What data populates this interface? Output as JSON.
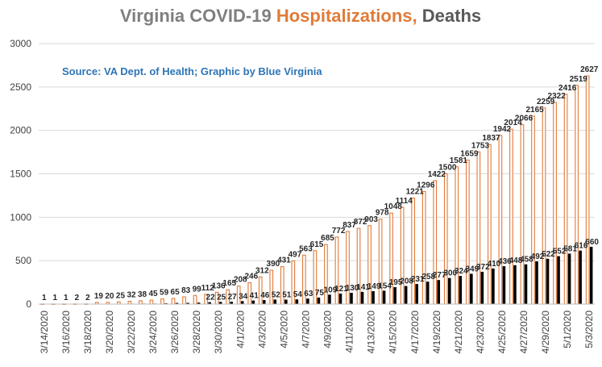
{
  "chart_data": {
    "type": "bar",
    "title_parts": [
      {
        "text": "Virginia COVID-19 ",
        "color": "#7f7f7f"
      },
      {
        "text": "Hospitalizations,",
        "color": "#e07b39"
      },
      {
        "text": " Deaths",
        "color": "#595959"
      }
    ],
    "subtitle": "Source: VA Dept. of Health; Graphic by Blue Virginia",
    "subtitle_color": "#2e75b6",
    "ylim": [
      0,
      3000
    ],
    "yticks": [
      0,
      500,
      1000,
      1500,
      2000,
      2500,
      3000
    ],
    "grid": true,
    "categories": [
      "3/14/2020",
      "3/15/2020",
      "3/16/2020",
      "3/17/2020",
      "3/18/2020",
      "3/19/2020",
      "3/20/2020",
      "3/21/2020",
      "3/22/2020",
      "3/23/2020",
      "3/24/2020",
      "3/25/2020",
      "3/26/2020",
      "3/27/2020",
      "3/28/2020",
      "3/29/2020",
      "3/30/2020",
      "3/31/2020",
      "4/1/2020",
      "4/2/2020",
      "4/3/2020",
      "4/4/2020",
      "4/5/2020",
      "4/6/2020",
      "4/7/2020",
      "4/8/2020",
      "4/9/2020",
      "4/10/2020",
      "4/11/2020",
      "4/12/2020",
      "4/13/2020",
      "4/14/2020",
      "4/15/2020",
      "4/16/2020",
      "4/17/2020",
      "4/18/2020",
      "4/19/2020",
      "4/20/2020",
      "4/21/2020",
      "4/22/2020",
      "4/23/2020",
      "4/24/2020",
      "4/25/2020",
      "4/26/2020",
      "4/27/2020",
      "4/28/2020",
      "4/29/2020",
      "4/30/2020",
      "5/1/2020",
      "5/2/2020",
      "5/3/2020"
    ],
    "xtick_labels": [
      "3/14/2020",
      "",
      "3/16/2020",
      "",
      "3/18/2020",
      "",
      "3/20/2020",
      "",
      "3/22/2020",
      "",
      "3/24/2020",
      "",
      "3/26/2020",
      "",
      "3/28/2020",
      "",
      "3/30/2020",
      "",
      "4/1/2020",
      "",
      "4/3/2020",
      "",
      "4/5/2020",
      "",
      "4/7/2020",
      "",
      "4/9/2020",
      "",
      "4/11/2020",
      "",
      "4/13/2020",
      "",
      "4/15/2020",
      "",
      "4/17/2020",
      "",
      "4/19/2020",
      "",
      "4/21/2020",
      "",
      "4/23/2020",
      "",
      "4/25/2020",
      "",
      "4/27/2020",
      "",
      "4/29/2020",
      "",
      "5/1/2020",
      "",
      "5/3/2020"
    ],
    "series": [
      {
        "name": "Hospitalizations",
        "color": "#e07b39",
        "style": "outline",
        "values": [
          1,
          1,
          1,
          2,
          2,
          19,
          20,
          25,
          32,
          38,
          45,
          59,
          65,
          83,
          99,
          112,
          136,
          165,
          208,
          246,
          312,
          390,
          431,
          497,
          563,
          615,
          685,
          772,
          837,
          872,
          903,
          978,
          1048,
          1114,
          1221,
          1296,
          1422,
          1500,
          1581,
          1659,
          1753,
          1837,
          1942,
          2014,
          2066,
          2165,
          2259,
          2322,
          2416,
          2519,
          2627
        ],
        "labels": [
          "1",
          "1",
          "1",
          "2",
          "2",
          "19",
          "20",
          "25",
          "32",
          "38",
          "45",
          "59",
          "65",
          "83",
          "99",
          "112",
          "136",
          "165",
          "208",
          "246",
          "312",
          "390",
          "431",
          "497",
          "563",
          "615",
          "685",
          "772",
          "837",
          "872",
          "903",
          "978",
          "1048",
          "1114",
          "1221",
          "1296",
          "1422",
          "1500",
          "1581",
          "1659",
          "1753",
          "1837",
          "1942",
          "2014",
          "2066",
          "2165",
          "2259",
          "2322",
          "2416",
          "2519",
          "2627"
        ]
      },
      {
        "name": "Deaths",
        "color": "#000000",
        "style": "solid",
        "values": [
          0,
          1,
          1,
          1,
          2,
          2,
          2,
          3,
          5,
          6,
          6,
          9,
          13,
          14,
          17,
          22,
          25,
          27,
          34,
          41,
          46,
          52,
          51,
          54,
          63,
          75,
          109,
          121,
          130,
          141,
          149,
          154,
          195,
          208,
          231,
          258,
          277,
          300,
          324,
          349,
          372,
          410,
          436,
          448,
          458,
          492,
          522,
          552,
          581,
          616,
          660
        ],
        "labels": [
          "",
          "1",
          "1",
          "1",
          "2",
          "2",
          "2",
          "3",
          "5",
          "6",
          "6",
          "9",
          "13",
          "14",
          "17",
          "22",
          "25",
          "27",
          "34",
          "41",
          "46",
          "52",
          "51",
          "54",
          "63",
          "75",
          "109",
          "121",
          "130",
          "141",
          "149",
          "154",
          "195",
          "208",
          "231",
          "258",
          "277",
          "300",
          "324",
          "349",
          "372",
          "410",
          "436",
          "448",
          "458",
          "492",
          "522",
          "552",
          "581",
          "616",
          "660"
        ]
      }
    ]
  }
}
